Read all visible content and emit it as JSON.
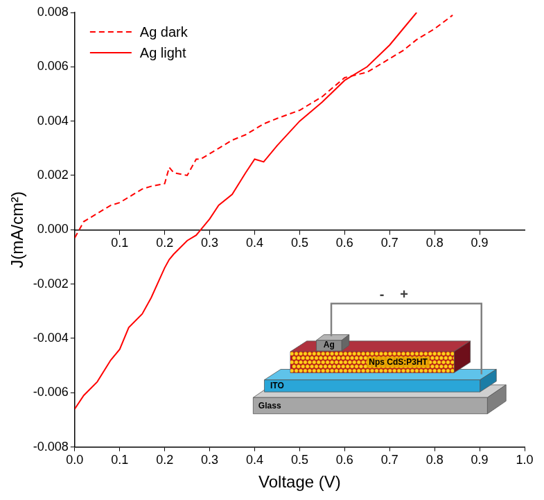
{
  "chart_data": {
    "type": "line",
    "x_label": "Voltage (V)",
    "y_label": "J(mA/cm²)",
    "x": [
      0,
      0.02,
      0.05,
      0.08,
      0.1,
      0.12,
      0.15,
      0.17,
      0.2,
      0.21,
      0.22,
      0.25,
      0.27,
      0.28,
      0.3,
      0.32,
      0.35,
      0.38,
      0.4,
      0.42,
      0.45,
      0.5,
      0.55,
      0.6,
      0.65,
      0.7,
      0.73,
      0.76,
      0.8,
      0.84
    ],
    "series": [
      {
        "name": "Ag dark",
        "color": "#ff0000",
        "line_style": "dashed",
        "values": [
          -0.0003,
          0.0003,
          0.0006,
          0.0009,
          0.001,
          0.0012,
          0.0015,
          0.0016,
          0.0017,
          0.0023,
          0.0021,
          0.002,
          0.0026,
          0.0026,
          0.0028,
          0.003,
          0.0033,
          0.0035,
          0.0037,
          0.0039,
          0.0041,
          0.0044,
          0.0049,
          0.0056,
          0.0058,
          0.0063,
          0.0066,
          0.007,
          0.0074,
          0.0079
        ]
      },
      {
        "name": "Ag light",
        "color": "#ff0000",
        "line_style": "solid",
        "values": [
          -0.0066,
          -0.0061,
          -0.0056,
          -0.0048,
          -0.0044,
          -0.0036,
          -0.0031,
          -0.0025,
          -0.0014,
          -0.0011,
          -0.0009,
          -0.0004,
          -0.0002,
          0,
          0.0004,
          0.0009,
          0.0013,
          0.0021,
          0.0026,
          0.0025,
          0.0031,
          0.004,
          0.0047,
          0.0055,
          0.006,
          0.0068,
          0.0074,
          0.008,
          null,
          null
        ]
      }
    ],
    "xlim": [
      0,
      1
    ],
    "xticks": [
      {
        "value": 0,
        "label": "0.0"
      },
      0.1,
      0.2,
      0.3,
      0.4,
      0.5,
      0.6,
      0.7,
      0.8,
      0.9,
      {
        "value": 1,
        "label": "1.0"
      }
    ],
    "x2lim": [
      0,
      1
    ],
    "x2ticks": [
      0.1,
      0.2,
      0.3,
      0.4,
      0.5,
      0.6,
      0.7,
      0.8,
      0.9
    ],
    "ylim": [
      -0.008,
      0.008
    ],
    "yticks": [
      -0.008,
      -0.006,
      -0.004,
      -0.002,
      {
        "value": 0,
        "label": "0.000"
      },
      0.002,
      0.004,
      0.006,
      0.008
    ],
    "grid": false,
    "legend": "upper left",
    "annotations": [
      "Ag",
      "Nps CdS:P3HT",
      "ITO",
      "Glass",
      "-",
      "+"
    ]
  }
}
